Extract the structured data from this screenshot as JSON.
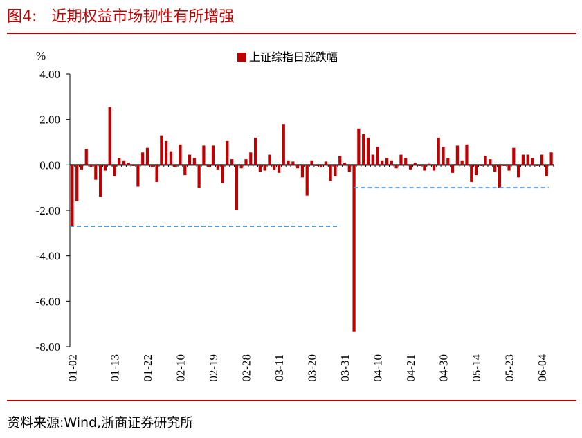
{
  "header": {
    "title": "图4:   近期权益市场韧性有所增强"
  },
  "footer": {
    "source": "资料来源:Wind,浙商证券研究所"
  },
  "colors": {
    "bar": "#c00000",
    "rule": "#c00000",
    "reference": "#5b9bd5",
    "axis": "#000000"
  },
  "chart_data": {
    "type": "bar",
    "title": "",
    "ylabel": "%",
    "ylim": [
      -8,
      4
    ],
    "yticks": [
      4,
      2,
      0,
      -2,
      -4,
      -6,
      -8
    ],
    "ytick_labels": [
      "4.00",
      "2.00",
      "0.00",
      "-2.00",
      "-4.00",
      "-6.00",
      "-8.00"
    ],
    "xtick_labels": [
      "01-02",
      "01-13",
      "01-22",
      "02-10",
      "02-19",
      "02-28",
      "03-11",
      "03-20",
      "03-31",
      "04-10",
      "04-21",
      "04-30",
      "05-14",
      "05-23",
      "06-04"
    ],
    "xtick_positions": [
      0,
      9,
      16,
      23,
      30,
      37,
      44,
      51,
      58,
      65,
      72,
      79,
      86,
      93,
      100
    ],
    "series": [
      {
        "name": "上证综指日涨跌幅",
        "values": [
          -2.7,
          -1.6,
          -0.2,
          0.7,
          -0.1,
          -0.65,
          -1.4,
          -0.25,
          2.55,
          -0.5,
          0.3,
          0.2,
          0.1,
          -0.05,
          -0.95,
          0.55,
          0.75,
          -0.1,
          -0.75,
          1.3,
          1.05,
          0.6,
          -0.1,
          0.9,
          -0.45,
          0.45,
          0.3,
          -1.0,
          0.85,
          -0.1,
          0.85,
          -0.2,
          -0.8,
          1.05,
          0.25,
          -2.0,
          -0.15,
          0.25,
          0.55,
          1.2,
          -0.3,
          -0.25,
          0.45,
          -0.2,
          -0.35,
          1.8,
          0.2,
          0.15,
          -0.15,
          -0.55,
          -1.35,
          0.2,
          -0.05,
          -0.1,
          0.15,
          -0.7,
          -0.5,
          0.4,
          0.1,
          -0.3,
          -7.35,
          1.6,
          1.35,
          1.2,
          0.45,
          0.8,
          0.2,
          0.3,
          0.2,
          -0.15,
          0.45,
          0.3,
          -0.2,
          0.1,
          -0.05,
          -0.25,
          0.05,
          -0.25,
          1.2,
          0.8,
          0.3,
          -0.35,
          0.85,
          0.2,
          0.9,
          -0.75,
          -0.45,
          -0.05,
          0.4,
          0.25,
          -0.3,
          -1.0,
          -0.05,
          -0.25,
          0.75,
          -0.55,
          0.45,
          0.45,
          0.3,
          -0.05,
          0.45,
          -0.5,
          0.55
        ]
      }
    ],
    "reference_lines": [
      {
        "y": -2.7,
        "x_start": 0,
        "x_end": 57.5,
        "style": "dashed"
      },
      {
        "y": -1.0,
        "x_start": 60.5,
        "x_end": 102,
        "style": "dashed"
      }
    ]
  }
}
